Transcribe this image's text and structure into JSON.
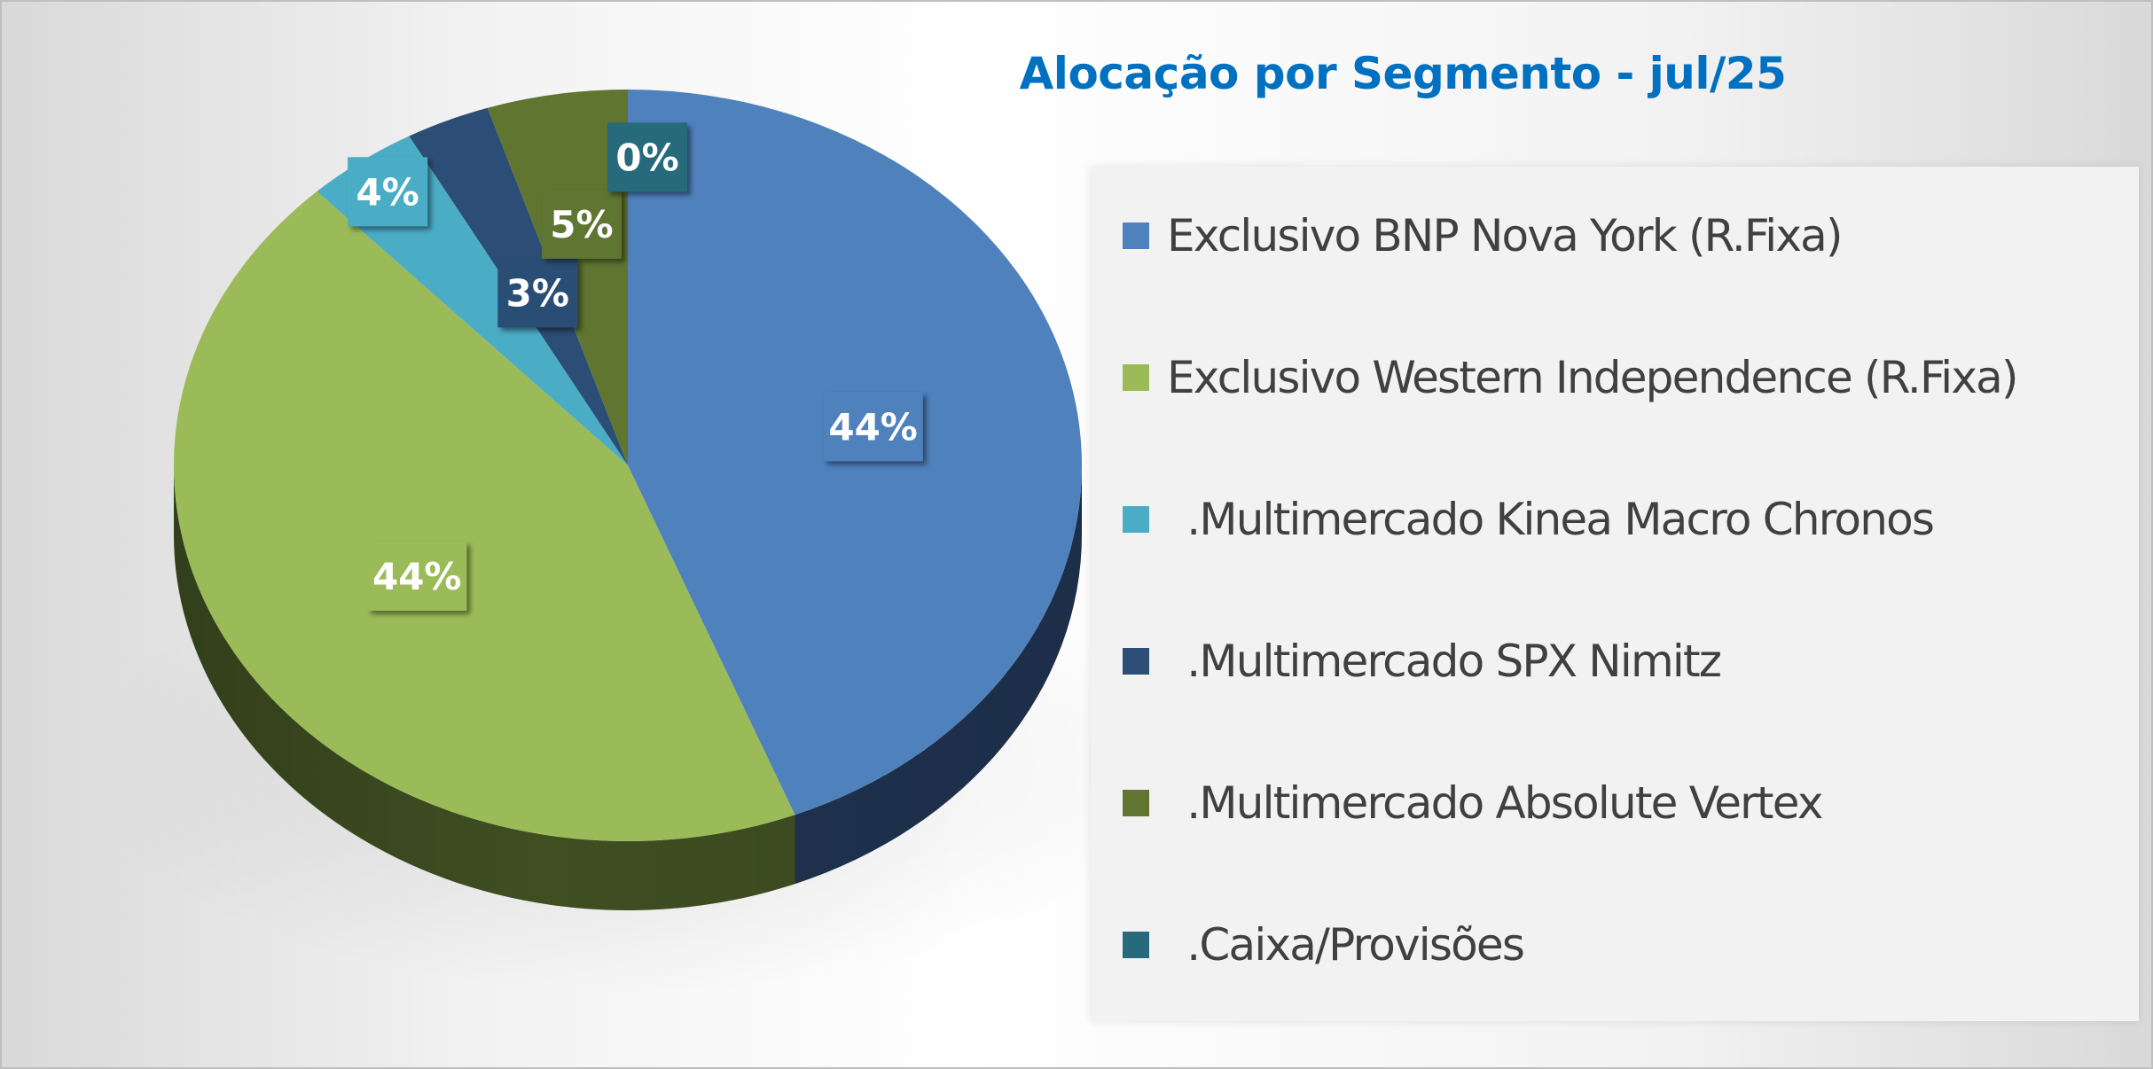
{
  "chart_data": {
    "type": "pie",
    "title": "Alocação por Segmento - jul/25",
    "style": "3d",
    "legend_position": "right",
    "slices": [
      {
        "label": "Exclusivo BNP Nova York (R.Fixa)",
        "value": 44,
        "display": "44%",
        "color": "#4f81bd",
        "side_color": "#1f3350"
      },
      {
        "label": "Exclusivo Western Independence (R.Fixa)",
        "value": 44,
        "display": "44%",
        "color": "#9bbb59",
        "side_color": "#3f4f22"
      },
      {
        "label": ".Multimercado Kinea Macro Chronos",
        "value": 4,
        "display": "4%",
        "color": "#4bacc6",
        "side_color": "#1d5868"
      },
      {
        "label": ".Multimercado SPX Nimitz",
        "value": 3,
        "display": "3%",
        "color": "#2c4d75",
        "side_color": "#172a40"
      },
      {
        "label": ".Multimercado Absolute Vertex",
        "value": 5,
        "display": "5%",
        "color": "#5f7530",
        "side_color": "#36451b"
      },
      {
        "label": ".Caixa/Provisões",
        "value": 0,
        "display": "0%",
        "color": "#276a7c",
        "side_color": "#15404b"
      }
    ]
  }
}
